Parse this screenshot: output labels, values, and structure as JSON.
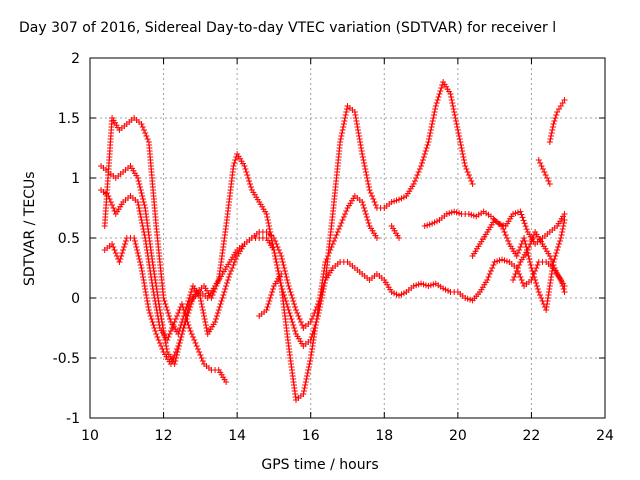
{
  "chart_data": {
    "type": "scatter",
    "title": "Day 307 of 2016, Sidereal Day-to-day VTEC variation (SDTVAR) for receiver l",
    "xlabel": "GPS time / hours",
    "ylabel": "SDTVAR / TECUs",
    "xlim": [
      10,
      24
    ],
    "ylim": [
      -1,
      2
    ],
    "xticks": [
      10,
      12,
      14,
      16,
      18,
      20,
      22,
      24
    ],
    "yticks": [
      -1,
      -0.5,
      0,
      0.5,
      1,
      1.5,
      2
    ],
    "grid": true,
    "marker": "+",
    "color": "#ff0000",
    "series": [
      {
        "points": [
          [
            10.3,
            1.1
          ],
          [
            10.5,
            1.05
          ],
          [
            10.7,
            1.0
          ],
          [
            10.9,
            1.05
          ],
          [
            11.1,
            1.1
          ],
          [
            11.3,
            1.0
          ],
          [
            11.5,
            0.75
          ],
          [
            11.7,
            0.3
          ],
          [
            11.9,
            -0.1
          ],
          [
            12.1,
            -0.45
          ],
          [
            12.3,
            -0.55
          ],
          [
            12.5,
            -0.3
          ],
          [
            12.7,
            -0.05
          ],
          [
            12.9,
            0.05
          ],
          [
            13.1,
            0.1
          ],
          [
            13.3,
            0.0
          ],
          [
            13.5,
            0.15
          ],
          [
            13.7,
            0.6
          ],
          [
            13.9,
            1.1
          ],
          [
            14.0,
            1.2
          ],
          [
            14.2,
            1.1
          ],
          [
            14.4,
            0.9
          ],
          [
            14.6,
            0.8
          ],
          [
            14.8,
            0.7
          ],
          [
            15.0,
            0.4
          ],
          [
            15.2,
            0.1
          ],
          [
            15.4,
            -0.1
          ],
          [
            15.6,
            -0.3
          ],
          [
            15.8,
            -0.4
          ],
          [
            16.0,
            -0.35
          ],
          [
            16.2,
            -0.15
          ],
          [
            16.4,
            0.15
          ],
          [
            16.6,
            0.7
          ],
          [
            16.8,
            1.3
          ],
          [
            17.0,
            1.6
          ],
          [
            17.2,
            1.55
          ],
          [
            17.4,
            1.2
          ],
          [
            17.6,
            0.9
          ],
          [
            17.8,
            0.75
          ],
          [
            18.0,
            0.75
          ],
          [
            18.2,
            0.8
          ],
          [
            18.4,
            0.82
          ],
          [
            18.6,
            0.85
          ],
          [
            18.8,
            0.95
          ],
          [
            19.0,
            1.1
          ],
          [
            19.2,
            1.3
          ],
          [
            19.4,
            1.6
          ],
          [
            19.6,
            1.8
          ],
          [
            19.8,
            1.7
          ],
          [
            20.0,
            1.4
          ],
          [
            20.2,
            1.1
          ],
          [
            20.4,
            0.95
          ]
        ]
      },
      {
        "points": [
          [
            10.4,
            0.4
          ],
          [
            10.6,
            0.45
          ],
          [
            10.8,
            0.3
          ],
          [
            11.0,
            0.5
          ],
          [
            11.2,
            0.5
          ],
          [
            11.4,
            0.25
          ],
          [
            11.6,
            -0.1
          ],
          [
            11.8,
            -0.3
          ],
          [
            12.0,
            -0.45
          ],
          [
            12.2,
            -0.55
          ],
          [
            12.4,
            -0.4
          ],
          [
            12.6,
            -0.2
          ],
          [
            12.8,
            0.0
          ],
          [
            13.0,
            0.05
          ],
          [
            13.2,
            0.0
          ],
          [
            13.4,
            0.1
          ],
          [
            13.6,
            0.2
          ],
          [
            13.8,
            0.3
          ],
          [
            14.0,
            0.4
          ],
          [
            14.2,
            0.45
          ],
          [
            14.4,
            0.5
          ],
          [
            14.6,
            0.55
          ],
          [
            14.8,
            0.55
          ],
          [
            15.0,
            0.5
          ],
          [
            15.2,
            0.35
          ],
          [
            15.4,
            0.1
          ],
          [
            15.6,
            -0.1
          ],
          [
            15.8,
            -0.25
          ],
          [
            16.0,
            -0.2
          ],
          [
            16.2,
            -0.05
          ],
          [
            16.4,
            0.15
          ],
          [
            16.6,
            0.25
          ],
          [
            16.8,
            0.3
          ],
          [
            17.0,
            0.3
          ],
          [
            17.2,
            0.25
          ],
          [
            17.4,
            0.2
          ],
          [
            17.6,
            0.15
          ],
          [
            17.8,
            0.2
          ],
          [
            18.0,
            0.15
          ],
          [
            18.2,
            0.05
          ],
          [
            18.4,
            0.02
          ],
          [
            18.6,
            0.05
          ],
          [
            18.8,
            0.1
          ],
          [
            19.0,
            0.12
          ],
          [
            19.2,
            0.1
          ],
          [
            19.4,
            0.12
          ],
          [
            19.6,
            0.08
          ],
          [
            19.8,
            0.05
          ],
          [
            20.0,
            0.05
          ],
          [
            20.2,
            0.0
          ],
          [
            20.4,
            -0.02
          ],
          [
            20.6,
            0.05
          ],
          [
            20.8,
            0.15
          ],
          [
            21.0,
            0.3
          ],
          [
            21.2,
            0.32
          ],
          [
            21.4,
            0.3
          ],
          [
            21.6,
            0.25
          ],
          [
            21.8,
            0.1
          ],
          [
            22.0,
            0.15
          ],
          [
            22.2,
            0.3
          ],
          [
            22.4,
            0.3
          ],
          [
            22.6,
            0.25
          ],
          [
            22.8,
            0.15
          ],
          [
            22.9,
            0.05
          ]
        ]
      },
      {
        "points": [
          [
            10.4,
            0.6
          ],
          [
            10.6,
            1.5
          ],
          [
            10.8,
            1.4
          ],
          [
            11.0,
            1.45
          ],
          [
            11.2,
            1.5
          ],
          [
            11.4,
            1.45
          ],
          [
            11.6,
            1.3
          ],
          [
            11.8,
            0.6
          ],
          [
            12.0,
            0.0
          ],
          [
            12.2,
            -0.2
          ],
          [
            12.4,
            -0.3
          ],
          [
            12.6,
            -0.1
          ],
          [
            12.8,
            0.1
          ],
          [
            13.0,
            0.0
          ],
          [
            13.2,
            -0.3
          ],
          [
            13.4,
            -0.2
          ],
          [
            13.6,
            0.0
          ],
          [
            13.8,
            0.2
          ],
          [
            14.0,
            0.35
          ],
          [
            14.2,
            0.45
          ],
          [
            14.4,
            0.5
          ],
          [
            14.6,
            0.5
          ],
          [
            14.8,
            0.5
          ],
          [
            15.0,
            0.4
          ],
          [
            15.2,
            0.1
          ],
          [
            15.4,
            -0.4
          ],
          [
            15.6,
            -0.85
          ],
          [
            15.8,
            -0.8
          ],
          [
            16.0,
            -0.5
          ],
          [
            16.2,
            -0.1
          ],
          [
            16.4,
            0.3
          ],
          [
            16.6,
            0.45
          ],
          [
            16.8,
            0.6
          ],
          [
            17.0,
            0.75
          ],
          [
            17.2,
            0.85
          ],
          [
            17.4,
            0.8
          ],
          [
            17.6,
            0.6
          ],
          [
            17.8,
            0.5
          ]
        ]
      },
      {
        "points": [
          [
            10.3,
            0.9
          ],
          [
            10.5,
            0.85
          ],
          [
            10.7,
            0.7
          ],
          [
            10.9,
            0.8
          ],
          [
            11.1,
            0.85
          ],
          [
            11.3,
            0.8
          ],
          [
            11.5,
            0.5
          ],
          [
            11.7,
            0.1
          ],
          [
            11.9,
            -0.25
          ],
          [
            12.1,
            -0.35
          ],
          [
            12.3,
            -0.2
          ],
          [
            12.5,
            -0.05
          ],
          [
            12.7,
            -0.25
          ],
          [
            12.9,
            -0.4
          ],
          [
            13.1,
            -0.55
          ],
          [
            13.3,
            -0.6
          ],
          [
            13.5,
            -0.6
          ],
          [
            13.7,
            -0.7
          ]
        ]
      },
      {
        "points": [
          [
            14.6,
            -0.15
          ],
          [
            14.8,
            -0.1
          ],
          [
            15.0,
            0.1
          ],
          [
            15.2,
            0.2
          ]
        ]
      },
      {
        "points": [
          [
            19.1,
            0.6
          ],
          [
            19.3,
            0.62
          ],
          [
            19.5,
            0.65
          ],
          [
            19.7,
            0.7
          ],
          [
            19.9,
            0.72
          ],
          [
            20.1,
            0.7
          ],
          [
            20.3,
            0.7
          ],
          [
            20.5,
            0.68
          ],
          [
            20.7,
            0.72
          ],
          [
            20.9,
            0.68
          ],
          [
            21.1,
            0.62
          ],
          [
            21.3,
            0.6
          ],
          [
            21.5,
            0.7
          ],
          [
            21.7,
            0.72
          ],
          [
            21.9,
            0.55
          ],
          [
            22.1,
            0.45
          ],
          [
            22.3,
            0.5
          ],
          [
            22.5,
            0.55
          ],
          [
            22.7,
            0.6
          ],
          [
            22.9,
            0.7
          ]
        ]
      },
      {
        "points": [
          [
            20.4,
            0.35
          ],
          [
            20.6,
            0.45
          ],
          [
            20.8,
            0.55
          ],
          [
            21.0,
            0.65
          ],
          [
            21.2,
            0.6
          ],
          [
            21.4,
            0.45
          ],
          [
            21.6,
            0.35
          ],
          [
            21.8,
            0.5
          ],
          [
            22.0,
            0.25
          ],
          [
            22.2,
            0.05
          ],
          [
            22.4,
            -0.1
          ],
          [
            22.6,
            0.3
          ],
          [
            22.8,
            0.5
          ],
          [
            22.9,
            0.65
          ]
        ]
      },
      {
        "points": [
          [
            21.5,
            0.15
          ],
          [
            21.7,
            0.3
          ],
          [
            21.9,
            0.4
          ],
          [
            22.1,
            0.55
          ],
          [
            22.3,
            0.45
          ],
          [
            22.5,
            0.35
          ],
          [
            22.7,
            0.2
          ],
          [
            22.9,
            0.1
          ]
        ]
      },
      {
        "points": [
          [
            22.2,
            1.15
          ],
          [
            22.35,
            1.05
          ],
          [
            22.5,
            0.95
          ]
        ]
      },
      {
        "points": [
          [
            22.5,
            1.3
          ],
          [
            22.6,
            1.45
          ],
          [
            22.7,
            1.55
          ],
          [
            22.8,
            1.6
          ],
          [
            22.9,
            1.65
          ]
        ]
      },
      {
        "points": [
          [
            18.2,
            0.6
          ],
          [
            18.4,
            0.5
          ]
        ]
      }
    ]
  }
}
